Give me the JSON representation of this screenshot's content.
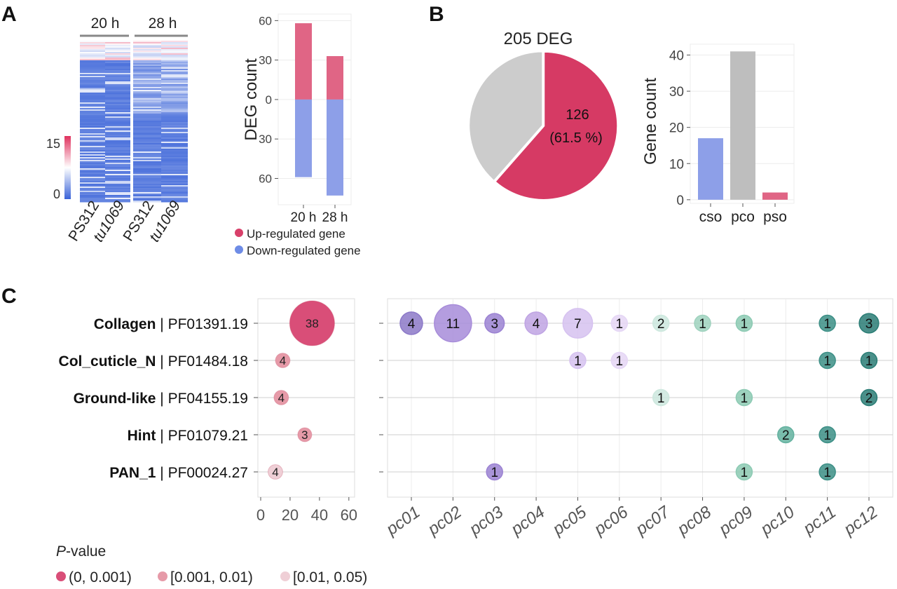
{
  "panels": {
    "a": "A",
    "b": "B",
    "c": "C"
  },
  "heatmap": {
    "group_labels": [
      "20 h",
      "28 h"
    ],
    "sample_labels": [
      "PS312",
      "tu1069",
      "PS312",
      "tu1069"
    ],
    "colorbar": {
      "min_label": "0",
      "max_label": "15",
      "colors": {
        "low": "#3a63d8",
        "mid": "#ffffff",
        "high": "#e0325e"
      }
    }
  },
  "legend_a": {
    "items": [
      {
        "label": "Up-regulated gene",
        "color": "#d8406a"
      },
      {
        "label": "Down-regulated gene",
        "color": "#6e8ce6"
      }
    ]
  },
  "pie_title": "205 DEG",
  "pie_label": {
    "count": "126",
    "percent": "(61.5 %)"
  },
  "chart_data": [
    {
      "type": "bar",
      "id": "deg-bar",
      "categories": [
        "20 h",
        "28 h"
      ],
      "series": [
        {
          "values": [
            58,
            33
          ],
          "color": "#e06585"
        },
        {
          "values": [
            -59,
            -73
          ],
          "color": "#8d9fe8"
        }
      ],
      "ylabel": "DEG count",
      "ylim": [
        -80,
        65
      ],
      "yticks": [
        60,
        30,
        0,
        -30,
        -60
      ],
      "ytick_labels": [
        "60",
        "30",
        "0",
        "30",
        "60"
      ]
    },
    {
      "type": "pie",
      "id": "deg-pie",
      "title": "205 DEG",
      "values": [
        126,
        79
      ],
      "colors": [
        "#d63a64",
        "#cccccc"
      ]
    },
    {
      "type": "bar",
      "id": "gene-bar",
      "categories": [
        "cso",
        "pco",
        "pso"
      ],
      "values": [
        17,
        41,
        2
      ],
      "colors": [
        "#8d9fe8",
        "#bebebe",
        "#e06585"
      ],
      "ylabel": "Gene count",
      "ylim": [
        -1,
        43
      ],
      "yticks": [
        0,
        10,
        20,
        30,
        40
      ]
    },
    {
      "type": "scatter",
      "id": "pfam-bubble",
      "rows": [
        {
          "name": "Collagen",
          "id": "PF01391.19"
        },
        {
          "name": "Col_cuticle_N",
          "id": "PF01484.18"
        },
        {
          "name": "Ground-like",
          "id": "PF04155.19"
        },
        {
          "name": "Hint",
          "id": "PF01079.21"
        },
        {
          "name": "PAN_1",
          "id": "PF00024.27"
        }
      ],
      "x": [
        35,
        15,
        14,
        30,
        10
      ],
      "counts": [
        38,
        4,
        4,
        3,
        4
      ],
      "pvalue_class": [
        0,
        1,
        1,
        1,
        2
      ],
      "xlim": [
        0,
        62
      ],
      "xticks": [
        0,
        20,
        40,
        60
      ],
      "pvalue_legend": {
        "title_italic": "P",
        "title_rest": "-value",
        "items": [
          {
            "label": "(0, 0.001)",
            "color": "#d94e78"
          },
          {
            "label": "[0.001, 0.01)",
            "color": "#e69aa8"
          },
          {
            "label": "[0.01, 0.05)",
            "color": "#efcfd6"
          }
        ]
      }
    },
    {
      "type": "scatter",
      "id": "pc-bubble",
      "categories": [
        "pc01",
        "pc02",
        "pc03",
        "pc04",
        "pc05",
        "pc06",
        "pc07",
        "pc08",
        "pc09",
        "pc10",
        "pc11",
        "pc12"
      ],
      "column_colors": [
        "#8c79c8",
        "#a78cd9",
        "#9b82d2",
        "#bfa4e3",
        "#d6c2f0",
        "#e5d6f5",
        "#cde8de",
        "#9fd2be",
        "#8ccab3",
        "#63b19f",
        "#3c8f86",
        "#2a7d75"
      ],
      "points": [
        {
          "row": 0,
          "col": 0,
          "n": 4
        },
        {
          "row": 0,
          "col": 1,
          "n": 11
        },
        {
          "row": 0,
          "col": 2,
          "n": 3
        },
        {
          "row": 0,
          "col": 3,
          "n": 4
        },
        {
          "row": 0,
          "col": 4,
          "n": 7
        },
        {
          "row": 0,
          "col": 5,
          "n": 1
        },
        {
          "row": 0,
          "col": 6,
          "n": 2
        },
        {
          "row": 0,
          "col": 7,
          "n": 1
        },
        {
          "row": 0,
          "col": 8,
          "n": 1
        },
        {
          "row": 0,
          "col": 10,
          "n": 1
        },
        {
          "row": 0,
          "col": 11,
          "n": 3
        },
        {
          "row": 1,
          "col": 4,
          "n": 1
        },
        {
          "row": 1,
          "col": 5,
          "n": 1
        },
        {
          "row": 1,
          "col": 10,
          "n": 1
        },
        {
          "row": 1,
          "col": 11,
          "n": 1
        },
        {
          "row": 2,
          "col": 6,
          "n": 1
        },
        {
          "row": 2,
          "col": 8,
          "n": 1
        },
        {
          "row": 2,
          "col": 11,
          "n": 2
        },
        {
          "row": 3,
          "col": 9,
          "n": 2
        },
        {
          "row": 3,
          "col": 10,
          "n": 1
        },
        {
          "row": 4,
          "col": 2,
          "n": 1
        },
        {
          "row": 4,
          "col": 8,
          "n": 1
        },
        {
          "row": 4,
          "col": 10,
          "n": 1
        }
      ]
    }
  ]
}
